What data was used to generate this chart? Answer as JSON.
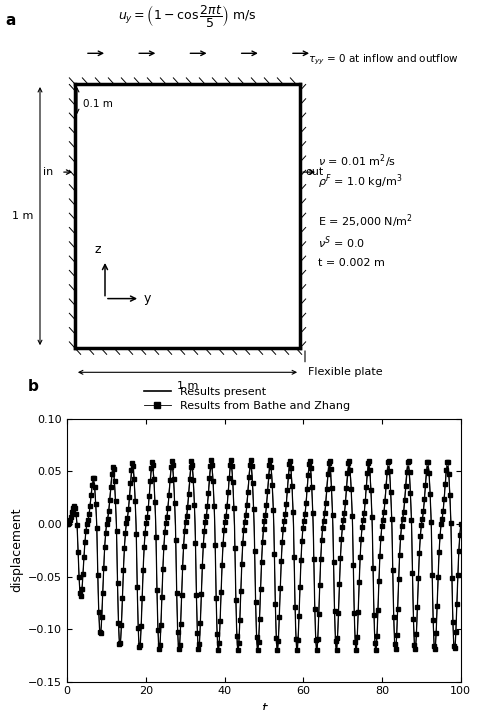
{
  "panel_a_label": "a",
  "panel_b_label": "b",
  "label_in": "in",
  "label_out": "out",
  "label_01m": "0.1 m",
  "label_1m_left": "1 m",
  "label_1m_bottom": "1 m",
  "label_tau": "$\\tau_{yy}$ = 0 at inflow and outflow",
  "label_nu": "$\\nu$ = 0.01 m$^2$/s",
  "label_rho": "$\\rho^F$ = 1.0 kg/m$^3$",
  "label_E": "E = 25,000 N/m$^2$",
  "label_nuS": "$\\nu^S$ = 0.0",
  "label_thickness": "t = 0.002 m",
  "label_flexible": "Flexible plate",
  "legend_line": "Results present",
  "legend_marker": "Results from Bathe and Zhang",
  "plot_xlim": [
    0,
    100
  ],
  "plot_ylim": [
    -0.15,
    0.1
  ],
  "plot_yticks": [
    -0.15,
    -0.1,
    -0.05,
    0,
    0.05,
    0.1
  ],
  "plot_xticks": [
    0,
    20,
    40,
    60,
    80,
    100
  ],
  "plot_xlabel": "t",
  "plot_ylabel": "displacement"
}
